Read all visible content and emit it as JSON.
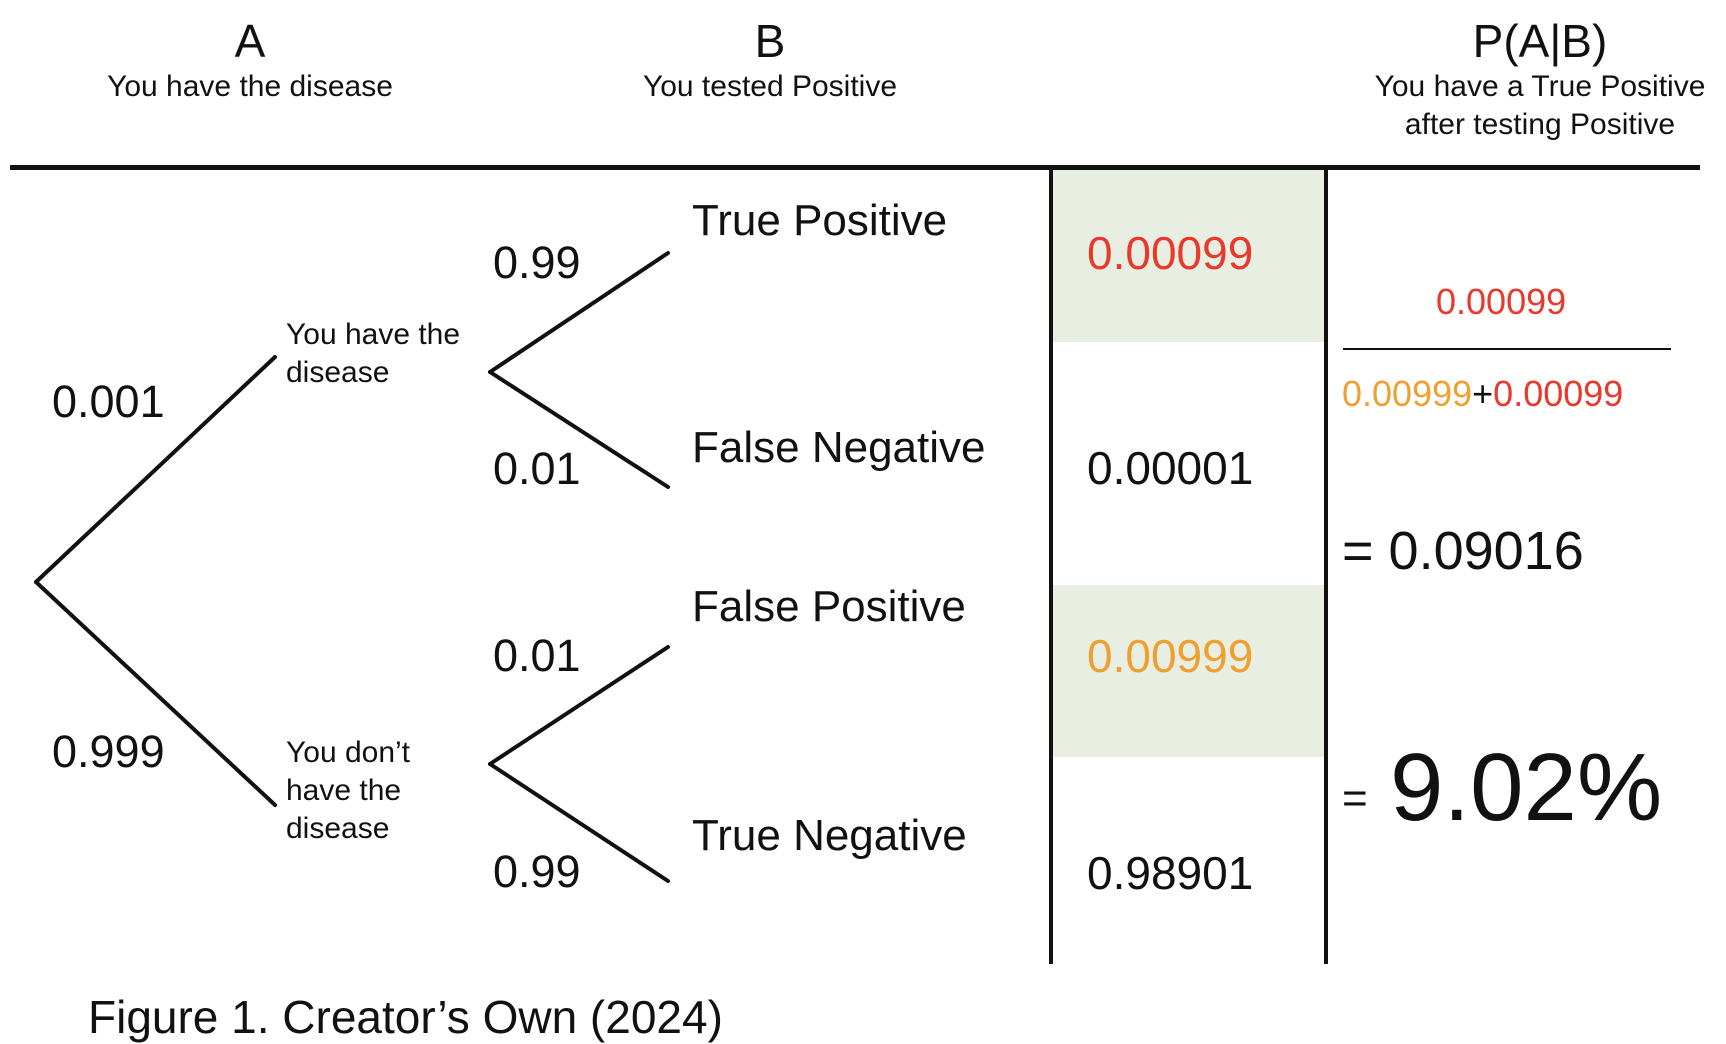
{
  "header": {
    "a": {
      "letter": "A",
      "caption": "You have the disease"
    },
    "b": {
      "letter": "B",
      "caption": "You tested Positive"
    },
    "pab": {
      "letter": "P(A|B)",
      "caption_line1": "You have a True Positive",
      "caption_line2": "after testing Positive"
    }
  },
  "tree": {
    "root_branches": [
      {
        "prob": "0.001",
        "node": "You have the disease"
      },
      {
        "prob": "0.999",
        "node": "You don’t have the disease"
      }
    ],
    "outcomes": [
      {
        "prob": "0.99",
        "label": "True Positive",
        "joint": "0.00099"
      },
      {
        "prob": "0.01",
        "label": "False Negative",
        "joint": "0.00001"
      },
      {
        "prob": "0.01",
        "label": "False Positive",
        "joint": "0.00999"
      },
      {
        "prob": "0.99",
        "label": "True Negative",
        "joint": "0.98901"
      }
    ]
  },
  "formula": {
    "numerator": "0.00099",
    "denominator_left": "0.00999",
    "plus": "+",
    "denominator_right": "0.00099",
    "equals_decimal": "= 0.09016",
    "equals_sign": "=",
    "percent": "9.02%"
  },
  "caption": "Figure 1. Creator’s Own (2024)",
  "colors": {
    "red": "#e8392c",
    "orange": "#f0a030",
    "shade": "#e8efe2",
    "ink": "#111111"
  }
}
